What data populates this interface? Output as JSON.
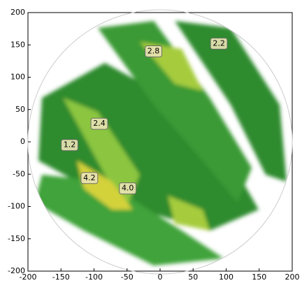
{
  "chart_data": {
    "type": "radar",
    "xlim": [
      -200,
      200
    ],
    "ylim": [
      -200,
      200
    ],
    "xticks": [
      -200,
      -150,
      -100,
      -50,
      0,
      50,
      100,
      150,
      200
    ],
    "yticks": [
      -200,
      -150,
      -100,
      -50,
      0,
      50,
      100,
      150,
      200
    ],
    "annotations": [
      {
        "text": "2.8",
        "x": -10,
        "y": 140
      },
      {
        "text": "2.2",
        "x": 89,
        "y": 152
      },
      {
        "text": "2.4",
        "x": -92,
        "y": 28
      },
      {
        "text": "1.2",
        "x": -137,
        "y": -5
      },
      {
        "text": "4.2",
        "x": -107,
        "y": -56
      },
      {
        "text": "4.0",
        "x": -49,
        "y": -72
      }
    ]
  }
}
